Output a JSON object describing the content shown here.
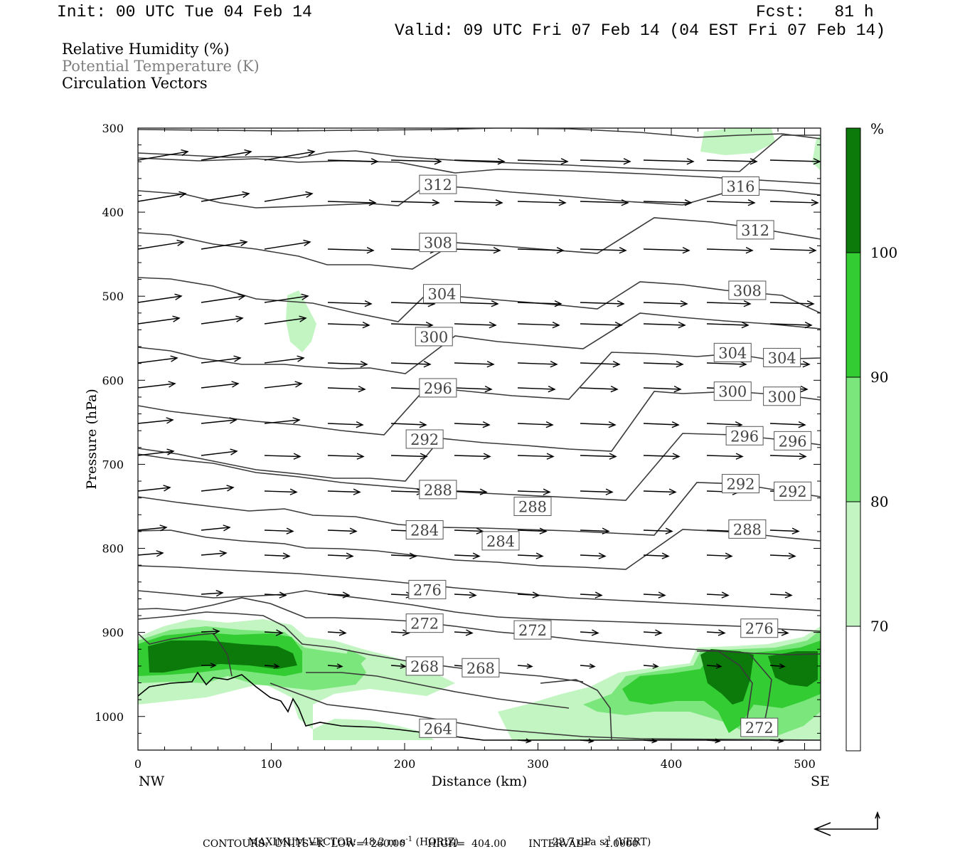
{
  "header": {
    "init": "Init: 00 UTC Tue 04 Feb 14",
    "fcst": "Fcst:   81 h",
    "valid": "Valid: 09 UTC Fri 07 Feb 14 (04 EST Fri 07 Feb 14)"
  },
  "legend": {
    "rh": "Relative Humidity (%)",
    "theta": "Potential Temperature (K)",
    "vectors": "Circulation Vectors"
  },
  "colors": {
    "rh70": "#c2f5c2",
    "rh80": "#7be67b",
    "rh90": "#33cc33",
    "rh100": "#0b7a0b",
    "contour": "#3a3a3a",
    "theta_text": "#808080"
  },
  "chart_data": {
    "type": "cross-section",
    "xlabel": "Distance (km)",
    "ylabel": "Pressure (hPa)",
    "xlim": [
      0,
      512
    ],
    "ylim": [
      1040,
      300
    ],
    "x_ticks": [
      0,
      100,
      200,
      300,
      400,
      500
    ],
    "y_ticks": [
      300,
      400,
      500,
      600,
      700,
      800,
      900,
      1000
    ],
    "x_end_labels": {
      "left": "NW",
      "right": "SE"
    },
    "colorbar": {
      "unit": "%",
      "levels": [
        "70",
        "80",
        "90",
        "100"
      ]
    },
    "theta_labels": [
      {
        "value": "312",
        "x": 225,
        "p": 367
      },
      {
        "value": "316",
        "x": 452,
        "p": 369
      },
      {
        "value": "308",
        "x": 225,
        "p": 436
      },
      {
        "value": "312",
        "x": 463,
        "p": 421
      },
      {
        "value": "304",
        "x": 228,
        "p": 497
      },
      {
        "value": "308",
        "x": 457,
        "p": 493
      },
      {
        "value": "300",
        "x": 222,
        "p": 548
      },
      {
        "value": "304",
        "x": 446,
        "p": 567
      },
      {
        "value": "304",
        "x": 483,
        "p": 573
      },
      {
        "value": "296",
        "x": 225,
        "p": 609
      },
      {
        "value": "300",
        "x": 446,
        "p": 613
      },
      {
        "value": "300",
        "x": 483,
        "p": 619
      },
      {
        "value": "292",
        "x": 215,
        "p": 670
      },
      {
        "value": "296",
        "x": 455,
        "p": 666
      },
      {
        "value": "296",
        "x": 491,
        "p": 672
      },
      {
        "value": "288",
        "x": 225,
        "p": 730
      },
      {
        "value": "288",
        "x": 296,
        "p": 750
      },
      {
        "value": "292",
        "x": 452,
        "p": 723
      },
      {
        "value": "292",
        "x": 491,
        "p": 732
      },
      {
        "value": "284",
        "x": 215,
        "p": 778
      },
      {
        "value": "284",
        "x": 272,
        "p": 791
      },
      {
        "value": "288",
        "x": 457,
        "p": 777
      },
      {
        "value": "276",
        "x": 217,
        "p": 849
      },
      {
        "value": "272",
        "x": 215,
        "p": 889
      },
      {
        "value": "272",
        "x": 296,
        "p": 897
      },
      {
        "value": "276",
        "x": 466,
        "p": 895
      },
      {
        "value": "268",
        "x": 215,
        "p": 940
      },
      {
        "value": "268",
        "x": 257,
        "p": 942
      },
      {
        "value": "264",
        "x": 225,
        "p": 1014
      },
      {
        "value": "272",
        "x": 466,
        "p": 1013
      }
    ]
  },
  "footer": {
    "max_vector": "MAXIMUM VECTOR:  48.2 m s",
    "max_vector_exp": "-1",
    "horiz": " (HORIZ)",
    "vert_val": "22.7 dPa s",
    "vert_exp": "-1",
    "vert": " (VERT)",
    "contours": "CONTOURS:  UNITS=K  LOW=  260.00       HIGH=  404.00       INTERVAL=    4.0000"
  }
}
